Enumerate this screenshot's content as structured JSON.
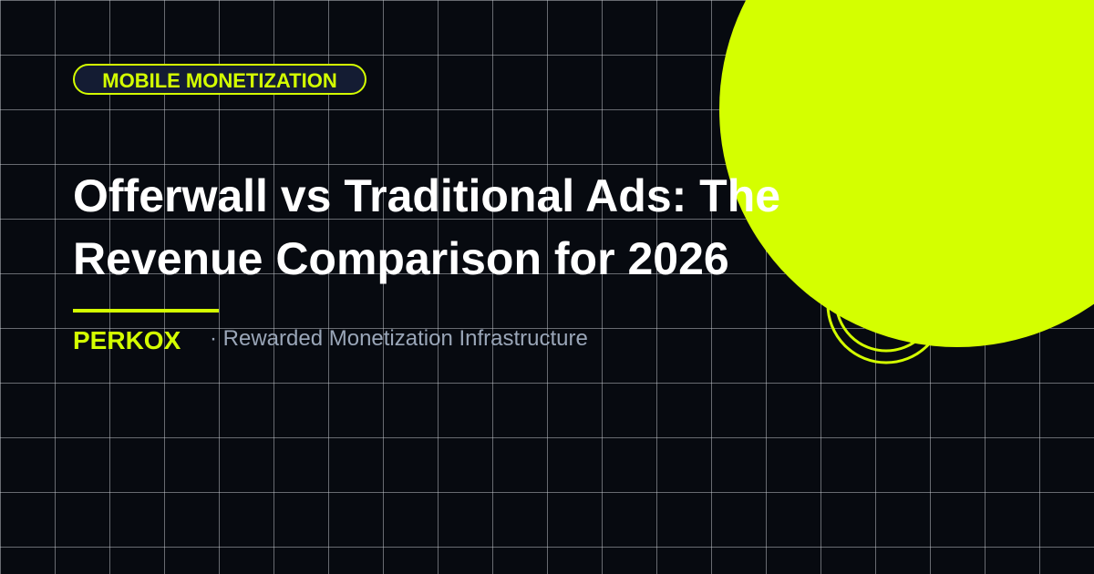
{
  "badge": "MOBILE MONETIZATION",
  "title_lines": [
    "Offerwall vs Traditional Ads: The",
    "Revenue Comparison for 2026"
  ],
  "brand": "PERKOX",
  "tagline": "· Rewarded Monetization Infrastructure"
}
